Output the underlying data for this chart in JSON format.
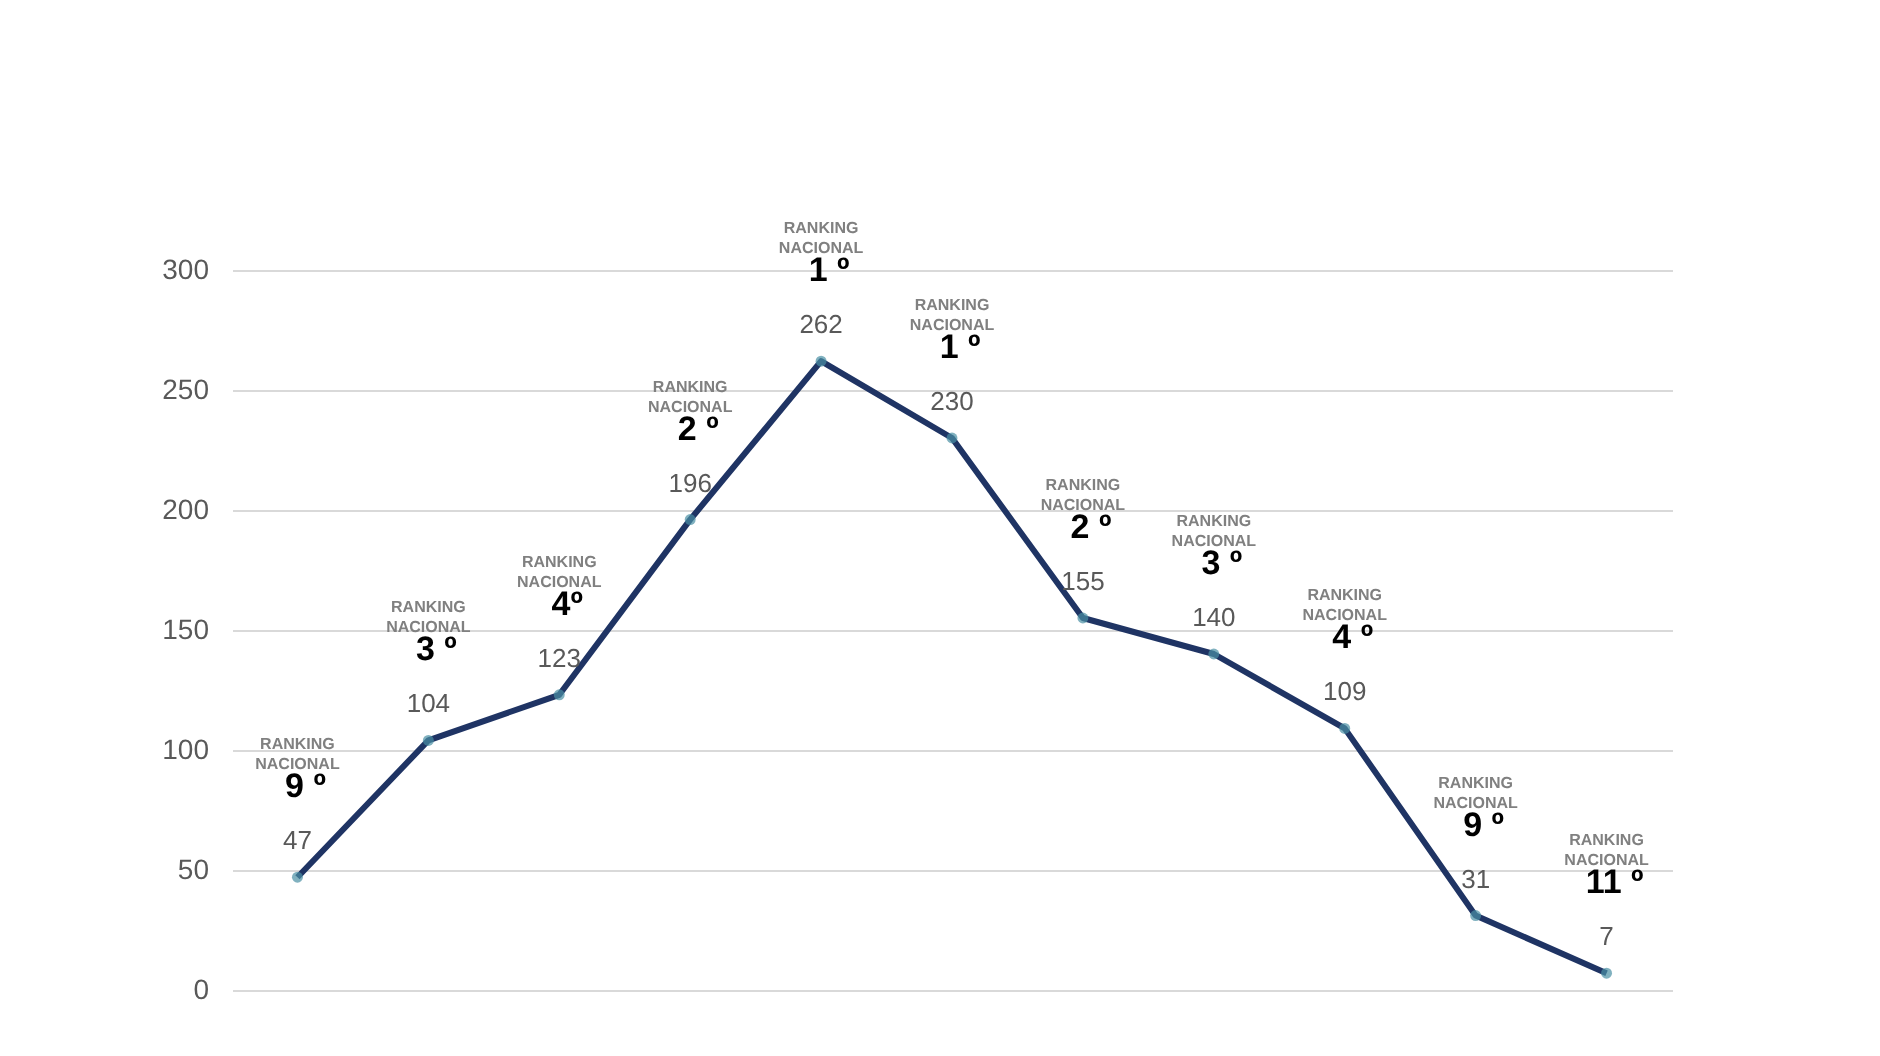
{
  "chart_data": {
    "type": "line",
    "categories": [
      null,
      null,
      null,
      null,
      null,
      null,
      null,
      null,
      null,
      null,
      null
    ],
    "series": [
      {
        "color": "#1f3464",
        "values": [
          47,
          104,
          123,
          196,
          262,
          230,
          155,
          140,
          109,
          31,
          7
        ]
      }
    ],
    "ylim": [
      0,
      300
    ],
    "yticks": [
      0,
      50,
      100,
      150,
      200,
      250,
      300
    ],
    "grid": "y",
    "marker": "circle",
    "data_labels": true,
    "tick_labels": "y",
    "annotations": [
      "RANKING NACIONAL",
      {
        "text": "9 º",
        "y": 47
      },
      "RANKING NACIONAL",
      {
        "text": "3 º",
        "y": 104
      },
      "RANKING NACIONAL",
      {
        "text": "4º",
        "y": 123
      },
      "RANKING NACIONAL",
      {
        "text": "2 º",
        "y": 196
      },
      "RANKING NACIONAL",
      {
        "text": "1 º",
        "y": 262
      },
      "RANKING NACIONAL",
      {
        "text": "1 º",
        "y": 230
      },
      "RANKING NACIONAL",
      {
        "text": "2 º",
        "y": 155
      },
      "RANKING NACIONAL",
      {
        "text": "3 º",
        "y": 140
      },
      "RANKING NACIONAL",
      {
        "text": "4 º",
        "y": 109
      },
      "RANKING NACIONAL",
      {
        "text": "9 º",
        "y": 31
      },
      "RANKING NACIONAL",
      {
        "text": "11 º",
        "y": 7
      }
    ]
  }
}
